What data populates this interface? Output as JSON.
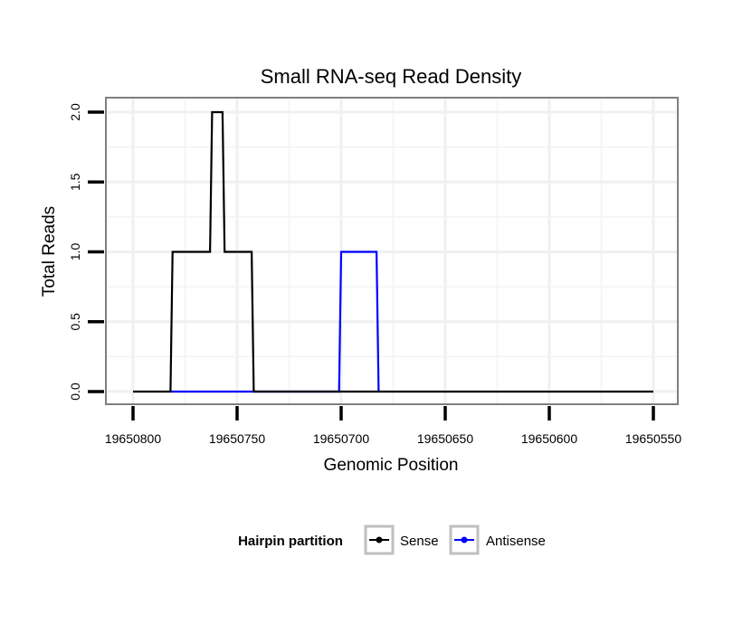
{
  "chart_data": {
    "type": "line",
    "title": "Small RNA-seq Read Density",
    "xlabel": "Genomic Position",
    "ylabel": "Total Reads",
    "x_reversed": true,
    "xlim": [
      19650800,
      19650550
    ],
    "ylim": [
      0,
      2
    ],
    "x_ticks": [
      19650800,
      19650750,
      19650700,
      19650650,
      19650600,
      19650550
    ],
    "x_tick_labels": [
      "19650800",
      "19650750",
      "19650700",
      "19650650",
      "19650600",
      "19650550"
    ],
    "y_ticks": [
      0,
      0.5,
      1,
      1.5,
      2
    ],
    "y_tick_labels": [
      "0.0",
      "0.5",
      "1.0",
      "1.5",
      "2.0"
    ],
    "grid": true,
    "legend": {
      "title": "Hairpin partition",
      "placement": "bottom"
    },
    "series": [
      {
        "name": "Sense",
        "color": "#000000",
        "x": [
          19650800,
          19650782,
          19650781,
          19650763,
          19650762,
          19650757,
          19650756,
          19650743,
          19650742,
          19650550
        ],
        "y": [
          0,
          0,
          1,
          1,
          2,
          2,
          1,
          1,
          0,
          0
        ]
      },
      {
        "name": "Antisense",
        "color": "#0000FF",
        "x": [
          19650782,
          19650701,
          19650700,
          19650683,
          19650682
        ],
        "y": [
          0,
          0,
          1,
          1,
          0
        ]
      }
    ]
  }
}
